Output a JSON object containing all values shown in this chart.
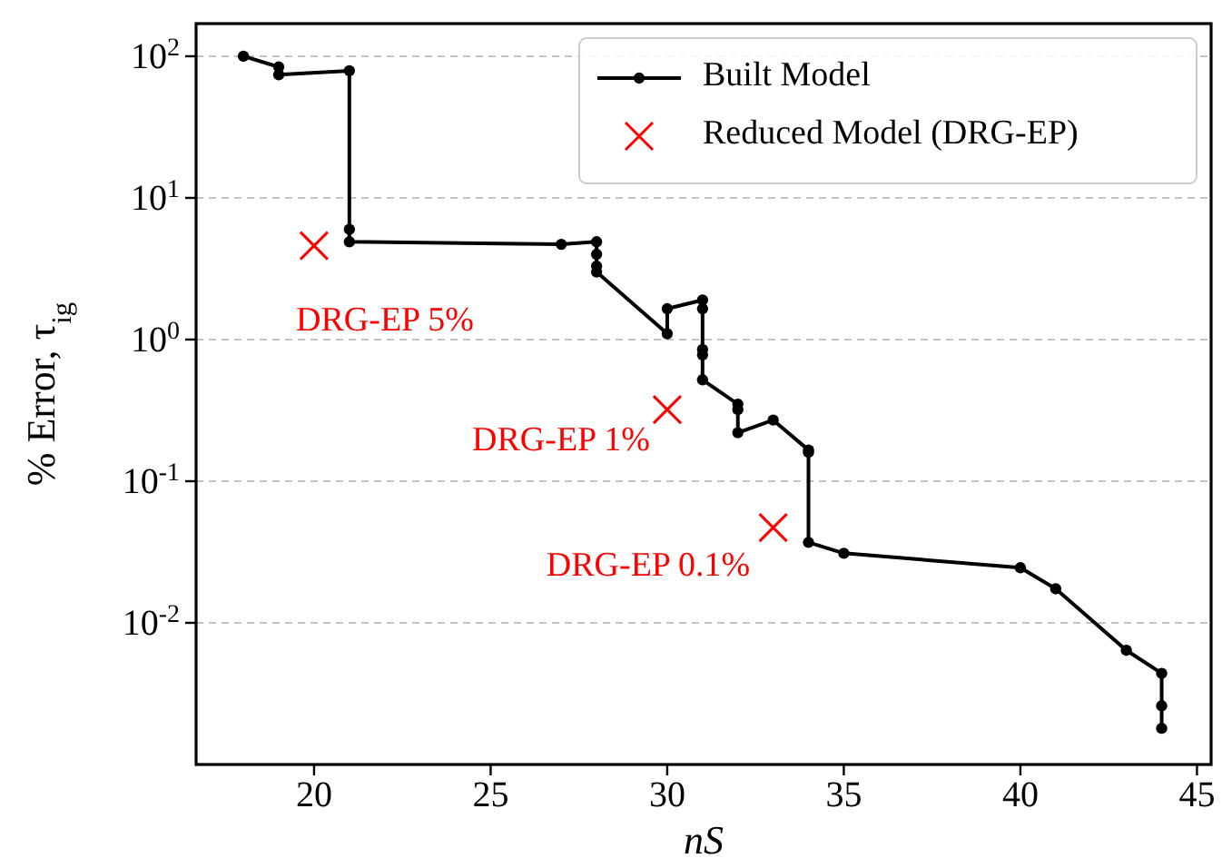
{
  "chart_data": {
    "type": "line",
    "xlabel": "nS",
    "ylabel": "% Error, τ$_{ig}$",
    "log": "y",
    "grid": "y",
    "legend": "top right",
    "xlim": [
      16.66,
      45.4
    ],
    "xticks": [
      20,
      25,
      30,
      35,
      40,
      45
    ],
    "ylim": [
      0.001,
      170
    ],
    "yticks": [
      {
        "value": 0.01,
        "label": "10$^{-2}$"
      },
      {
        "value": 0.1,
        "label": "10$^{-1}$"
      },
      {
        "value": 1,
        "label": "10$^{0}$"
      },
      {
        "value": 10,
        "label": "10$^{1}$"
      },
      {
        "value": 100,
        "label": "10$^{2}$"
      }
    ],
    "series": [
      {
        "name": "Built Model",
        "color": "#000000",
        "marker": "circle",
        "line_style": "solid",
        "x": [
          18,
          19,
          19,
          21,
          21,
          21,
          27,
          28,
          28,
          28,
          28,
          30,
          30,
          31,
          31,
          31,
          31,
          31,
          32,
          32,
          32,
          33,
          34,
          34,
          34,
          35,
          40,
          41,
          43,
          44,
          44,
          44
        ],
        "values": [
          100,
          84,
          74,
          79,
          6,
          4.9,
          4.7,
          4.9,
          4.0,
          3.3,
          3.0,
          1.1,
          1.65,
          1.9,
          1.65,
          0.85,
          0.78,
          0.52,
          0.35,
          0.32,
          0.22,
          0.27,
          0.166,
          0.16,
          0.037,
          0.031,
          0.0245,
          0.0174,
          0.0064,
          0.0044,
          0.0026,
          0.0018
        ]
      },
      {
        "name": "Reduced Model (DRG-EP)",
        "type": "scatter",
        "color": "#ff0000",
        "marker": "cross",
        "x": [
          20,
          30,
          33
        ],
        "values": [
          4.6,
          0.32,
          0.047
        ]
      }
    ],
    "annotations": [
      "DRG-EP 5%",
      "DRG-EP 1%",
      "DRG-EP 0.1%"
    ]
  }
}
